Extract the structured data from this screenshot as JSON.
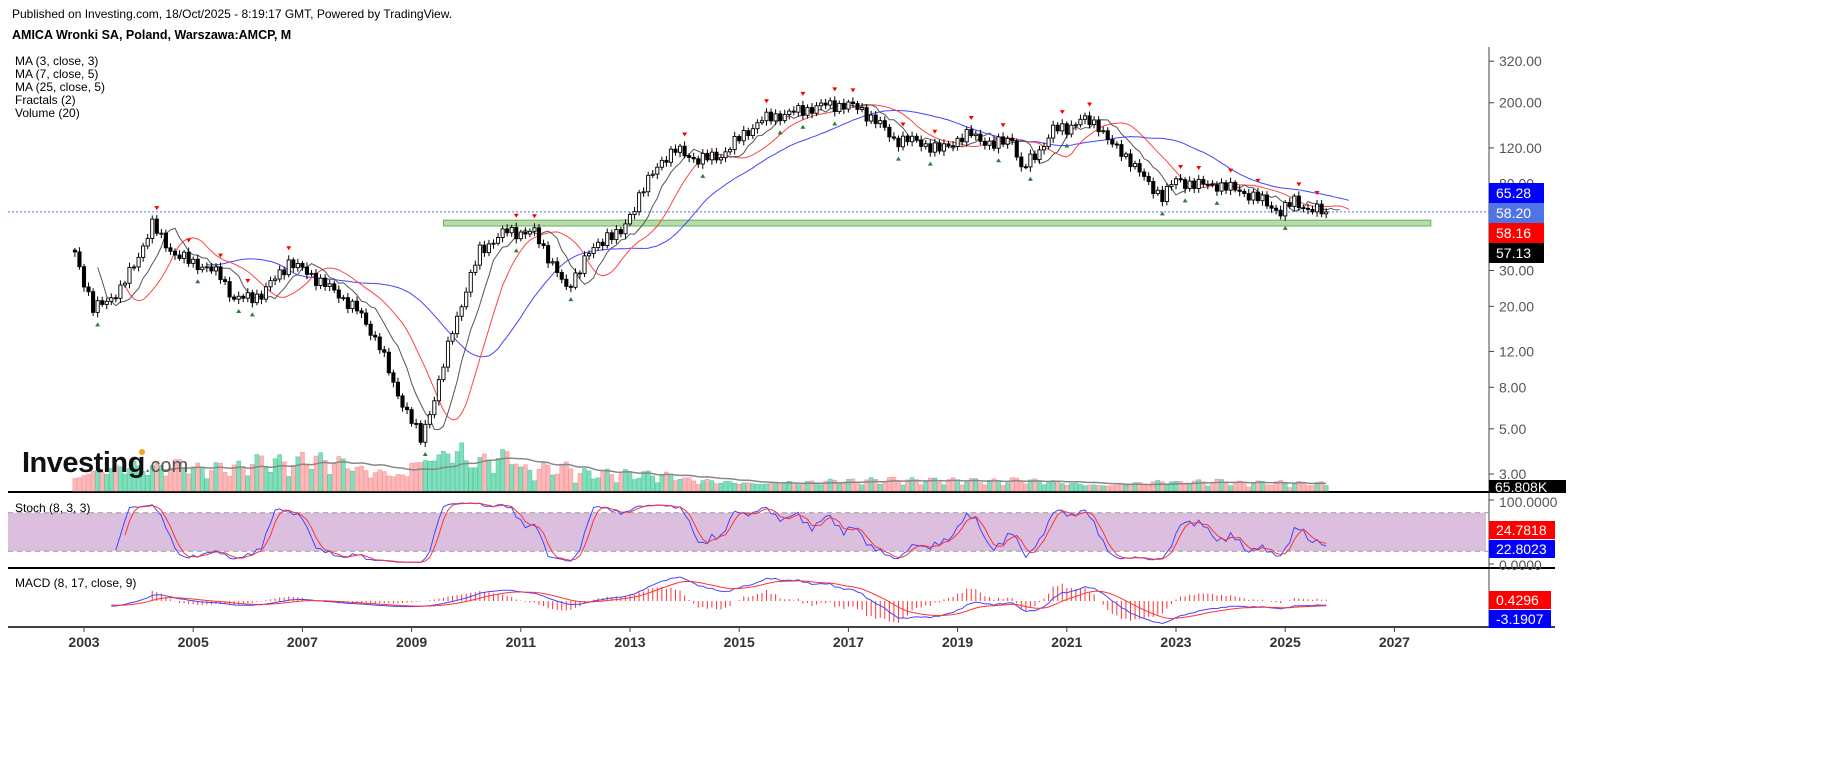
{
  "header": {
    "published": "Published on Investing.com, 18/Oct/2025 - 8:19:17 GMT, Powered by TradingView.",
    "symbol": "AMICA Wronki SA, Poland, Warszawa:AMCP, M"
  },
  "legend": [
    "MA (3, close, 3)",
    "MA (7, close, 5)",
    "MA (25, close, 5)",
    "Fractals (2)",
    "Volume (20)"
  ],
  "logo": {
    "main": "Investing",
    "suffix": ".com"
  },
  "colors": {
    "ma3": "#555555",
    "ma7": "#ff4444",
    "ma25": "#4444ff",
    "volume_up": "#7fe0bd",
    "volume_down": "#ffb8b8",
    "fractal_up": "#ff0000",
    "fractal_down": "#2e7d32",
    "zone": "#8fc97f",
    "stoch_band": "#dcbfdf",
    "stoch_k": "#4444ff",
    "stoch_d": "#ff3333",
    "macd_line": "#4444ff",
    "macd_signal": "#ff3333",
    "macd_hist": "#ff3333"
  },
  "chart_data": {
    "type": "candlestick",
    "interval": "monthly",
    "y_scale": "log",
    "ylim": [
      3,
      320
    ],
    "price_ticks": [
      "320.00",
      "200.00",
      "120.00",
      "80.00",
      "30.00",
      "20.00",
      "12.00",
      "8.00",
      "5.00",
      "3.00"
    ],
    "x_ticks": [
      "2003",
      "2005",
      "2007",
      "2009",
      "2011",
      "2013",
      "2015",
      "2017",
      "2019",
      "2021",
      "2023",
      "2025",
      "2027"
    ],
    "price_points": [
      [
        "2002-11",
        37
      ],
      [
        "2003-03",
        19.2
      ],
      [
        "2003-09",
        24
      ],
      [
        "2004-01",
        35.6
      ],
      [
        "2004-04",
        50
      ],
      [
        "2004-09",
        35.6
      ],
      [
        "2005-01",
        33
      ],
      [
        "2005-07",
        28.5
      ],
      [
        "2005-10",
        21.5
      ],
      [
        "2006-04",
        22.8
      ],
      [
        "2006-10",
        33
      ],
      [
        "2007-03",
        28.5
      ],
      [
        "2007-09",
        22.8
      ],
      [
        "2008-01",
        19.2
      ],
      [
        "2008-06",
        12.9
      ],
      [
        "2008-09",
        8.2
      ],
      [
        "2009-01",
        5.5
      ],
      [
        "2009-03",
        4.4
      ],
      [
        "2009-07",
        8.4
      ],
      [
        "2009-10",
        15.3
      ],
      [
        "2010-01",
        24
      ],
      [
        "2010-04",
        37.6
      ],
      [
        "2010-10",
        47
      ],
      [
        "2011-01",
        46
      ],
      [
        "2011-04",
        46
      ],
      [
        "2011-08",
        32.4
      ],
      [
        "2011-11",
        24
      ],
      [
        "2012-03",
        34
      ],
      [
        "2012-08",
        45
      ],
      [
        "2012-11",
        45
      ],
      [
        "2013-03",
        70
      ],
      [
        "2013-08",
        105
      ],
      [
        "2013-11",
        117
      ],
      [
        "2014-04",
        105
      ],
      [
        "2014-09",
        110
      ],
      [
        "2015-02",
        140
      ],
      [
        "2015-06",
        165
      ],
      [
        "2015-10",
        174
      ],
      [
        "2016-03",
        184
      ],
      [
        "2016-08",
        195
      ],
      [
        "2017-01",
        195
      ],
      [
        "2017-04",
        184
      ],
      [
        "2017-08",
        156
      ],
      [
        "2017-11",
        132
      ],
      [
        "2018-04",
        130
      ],
      [
        "2018-09",
        117
      ],
      [
        "2019-01",
        132
      ],
      [
        "2019-04",
        140
      ],
      [
        "2019-09",
        123
      ],
      [
        "2020-01",
        135
      ],
      [
        "2020-03",
        93
      ],
      [
        "2020-07",
        117
      ],
      [
        "2020-10",
        147
      ],
      [
        "2021-01",
        150
      ],
      [
        "2021-04",
        165
      ],
      [
        "2021-08",
        156
      ],
      [
        "2021-11",
        123
      ],
      [
        "2022-03",
        105
      ],
      [
        "2022-07",
        79
      ],
      [
        "2022-10",
        70
      ],
      [
        "2023-01",
        83
      ],
      [
        "2023-06",
        79
      ],
      [
        "2023-10",
        79
      ],
      [
        "2024-03",
        74
      ],
      [
        "2024-08",
        66
      ],
      [
        "2024-12",
        58
      ],
      [
        "2025-03",
        66
      ],
      [
        "2025-06",
        60
      ],
      [
        "2025-10",
        58.16
      ]
    ],
    "volume_k_yearly": {
      "2002": 250,
      "2003": 300,
      "2004": 250,
      "2005": 200,
      "2006": 250,
      "2007": 300,
      "2008": 250,
      "2009": 550,
      "2010": 350,
      "2011": 200,
      "2012": 150,
      "2013": 150,
      "2014": 120,
      "2015": 130,
      "2016": 110,
      "2017": 100,
      "2018": 90,
      "2019": 90,
      "2020": 110,
      "2021": 100,
      "2022": 110,
      "2023": 90,
      "2024": 70,
      "2025": 65.808
    },
    "support_zone": {
      "low": 49.6,
      "high": 53,
      "from": "2009-08",
      "to": "2027-09"
    },
    "last_price_line": 58.2,
    "price_tags": [
      {
        "label": "65.28",
        "series": "MA (25, close, 5)",
        "color": "#0000ff"
      },
      {
        "label": "58.20",
        "series": "last",
        "color": "#4f74e6"
      },
      {
        "label": "58.16",
        "series": "MA (7, close, 5)",
        "color": "#ff0000"
      },
      {
        "label": "57.13",
        "series": "MA (3, close, 3)",
        "color": "#000000"
      }
    ],
    "volume_tag": "65.808K",
    "stoch": {
      "label": "Stoch (8, 3, 3)",
      "ticks": [
        "100.0000",
        "0.0000"
      ],
      "band": [
        20,
        80
      ],
      "k_value": "22.8023",
      "d_value": "24.7818"
    },
    "macd": {
      "label": "MACD (8, 17, close, 9)",
      "signal_value": "0.4296",
      "macd_value": "-3.1907"
    }
  }
}
